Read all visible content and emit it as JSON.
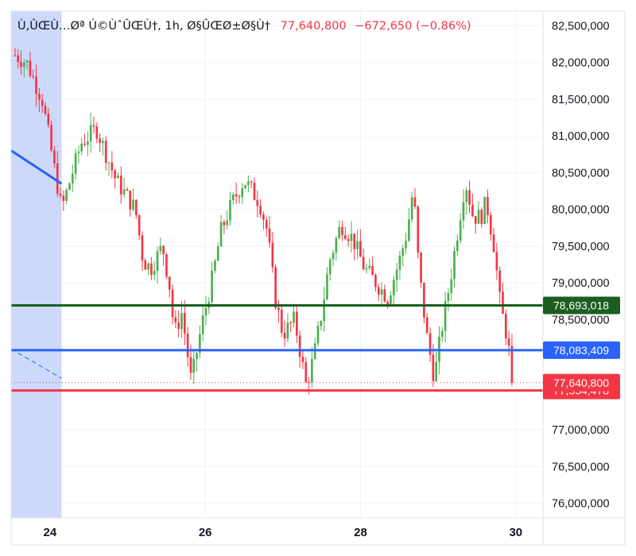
{
  "header": {
    "symbol": "Ù‚ÛŒÙ…Øª Ú©ÙˆÛŒÙ†, 1h, Ø§ÛŒØ±Ø§Ù†",
    "price": "77,640,800",
    "change": "−672,650 (−0.86%)"
  },
  "colors": {
    "up": "#4caf50",
    "down": "#f23645",
    "support_green": "#1b5e20",
    "support_blue": "#2962ff",
    "support_red": "#f23645",
    "shade": "#c9d7fb"
  },
  "chart_data": {
    "type": "candlestick",
    "ylim": [
      75800000,
      82700000
    ],
    "y_ticks": [
      {
        "value": 76000000,
        "label": "76,000,000"
      },
      {
        "value": 76500000,
        "label": "76,500,000"
      },
      {
        "value": 77000000,
        "label": "77,000,000"
      },
      {
        "value": 78500000,
        "label": "78,500,000"
      },
      {
        "value": 79000000,
        "label": "79,000,000"
      },
      {
        "value": 79500000,
        "label": "79,500,000"
      },
      {
        "value": 80000000,
        "label": "80,000,000"
      },
      {
        "value": 80500000,
        "label": "80,500,000"
      },
      {
        "value": 81000000,
        "label": "81,000,000"
      },
      {
        "value": 81500000,
        "label": "81,500,000"
      },
      {
        "value": 82000000,
        "label": "82,000,000"
      },
      {
        "value": 82500000,
        "label": "82,500,000"
      }
    ],
    "x_ticks": [
      {
        "value": 24,
        "label": "24"
      },
      {
        "value": 26,
        "label": "26"
      },
      {
        "value": 28,
        "label": "28"
      },
      {
        "value": 30,
        "label": "30"
      }
    ],
    "xlim": [
      23.5,
      30.35
    ],
    "levels": [
      {
        "value": 78693018,
        "label": "78,693,018",
        "color": "#1b5e20"
      },
      {
        "value": 78083409,
        "label": "78,083,409",
        "color": "#2962ff"
      },
      {
        "value": 77534478,
        "label": "77,534,478",
        "color": "#f23645"
      }
    ],
    "last_price": {
      "value": 77640800,
      "label": "77,640,800"
    },
    "shaded_range": [
      23.5,
      24.15
    ],
    "trendline": {
      "x": [
        23.5,
        24.15
      ],
      "y": [
        80800000,
        80350000
      ]
    },
    "dashed_line": {
      "x": [
        23.5,
        24.15
      ],
      "y": [
        78100000,
        77700000
      ]
    },
    "waypoints": [
      [
        23.55,
        82100000
      ],
      [
        23.7,
        82000000
      ],
      [
        23.9,
        81500000
      ],
      [
        24.05,
        80600000
      ],
      [
        24.15,
        80000000
      ],
      [
        24.4,
        80900000
      ],
      [
        24.6,
        81100000
      ],
      [
        24.85,
        80400000
      ],
      [
        25.1,
        80000000
      ],
      [
        25.2,
        79300000
      ],
      [
        25.3,
        79200000
      ],
      [
        25.45,
        79500000
      ],
      [
        25.55,
        78900000
      ],
      [
        25.6,
        78300000
      ],
      [
        25.7,
        78600000
      ],
      [
        25.82,
        77650000
      ],
      [
        25.95,
        78400000
      ],
      [
        26.1,
        79100000
      ],
      [
        26.2,
        79700000
      ],
      [
        26.35,
        80100000
      ],
      [
        26.5,
        80400000
      ],
      [
        26.7,
        80100000
      ],
      [
        26.8,
        79700000
      ],
      [
        26.9,
        78800000
      ],
      [
        27.0,
        78300000
      ],
      [
        27.15,
        78500000
      ],
      [
        27.3,
        77600000
      ],
      [
        27.4,
        78000000
      ],
      [
        27.5,
        78600000
      ],
      [
        27.6,
        79300000
      ],
      [
        27.75,
        79800000
      ],
      [
        27.9,
        79600000
      ],
      [
        28.05,
        79200000
      ],
      [
        28.2,
        79000000
      ],
      [
        28.35,
        78800000
      ],
      [
        28.5,
        79300000
      ],
      [
        28.6,
        79700000
      ],
      [
        28.68,
        80300000
      ],
      [
        28.75,
        79200000
      ],
      [
        28.85,
        78300000
      ],
      [
        28.95,
        77700000
      ],
      [
        29.05,
        78400000
      ],
      [
        29.15,
        79000000
      ],
      [
        29.25,
        79700000
      ],
      [
        29.35,
        80400000
      ],
      [
        29.45,
        79900000
      ],
      [
        29.55,
        79900000
      ],
      [
        29.62,
        80100000
      ],
      [
        29.72,
        79500000
      ],
      [
        29.8,
        78700000
      ],
      [
        29.9,
        78200000
      ],
      [
        29.95,
        77640800
      ]
    ],
    "candle_count": 165
  }
}
